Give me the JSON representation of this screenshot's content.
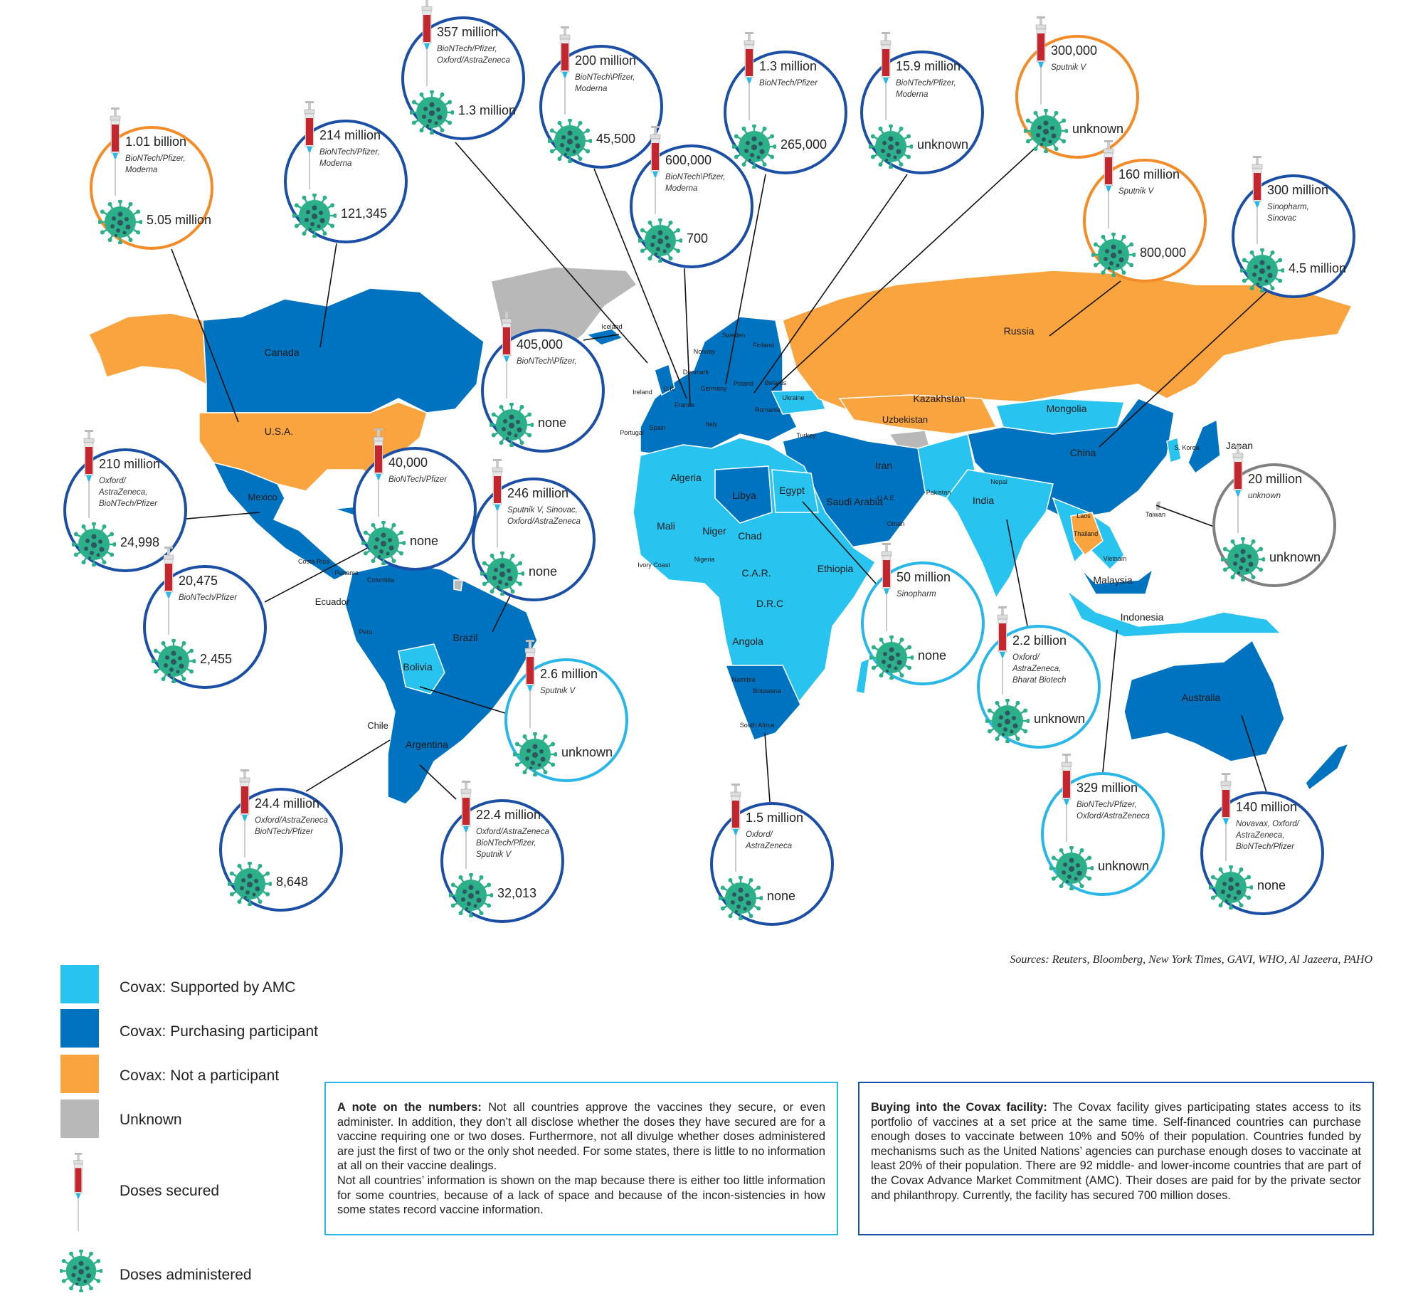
{
  "colors": {
    "supported_by_amc": "#29c3f0",
    "purchasing_participant": "#0073c0",
    "not_a_participant": "#f9a43e",
    "unknown": "#b8b8b8",
    "circle_purchasing": "#1b4fa6",
    "circle_not_participant": "#f28c28",
    "circle_amc": "#29b6e8",
    "circle_unknown": "#808080",
    "virus": "#2bb08a",
    "syringe_liquid": "#c4262e"
  },
  "country_labels": [
    "Canada",
    "U.S.A.",
    "Mexico",
    "Costa Rica",
    "Panama",
    "Colombia",
    "Ecuador",
    "Peru",
    "Brazil",
    "Bolivia",
    "Chile",
    "Argentina",
    "Iceland",
    "Norway",
    "Sweden",
    "Finland",
    "Denmark",
    "Ireland",
    "U.K.",
    "France",
    "Germany",
    "Poland",
    "Belarus",
    "Ukraine",
    "Romania",
    "Spain",
    "Portugal",
    "Italy",
    "Turkey",
    "Russia",
    "Kazakhstan",
    "Uzbekistan",
    "Mongolia",
    "China",
    "Japan",
    "S. Korea",
    "Taiwan",
    "Iran",
    "Saudi Arabia",
    "U.A.E.",
    "Oman",
    "Pakistan",
    "Nepal",
    "India",
    "Laos",
    "Thailand",
    "Vietnam",
    "Malaysia",
    "Indonesia",
    "Australia",
    "Algeria",
    "Libya",
    "Egypt",
    "Mali",
    "Niger",
    "Chad",
    "Nigeria",
    "Ivory Coast",
    "C.A.R.",
    "Ethiopia",
    "D.R.C",
    "Angola",
    "Namibia",
    "Botswana",
    "South Africa"
  ],
  "callouts": [
    {
      "status": "not_a_participant",
      "secured": "1.01 billion",
      "vaccines": "BioNTech/Pfizer,\nModerna",
      "administered": "5.05 million"
    },
    {
      "status": "purchasing",
      "secured": "214 million",
      "vaccines": "BioNTech/Pfizer,\nModerna",
      "administered": "121,345"
    },
    {
      "status": "purchasing",
      "secured": "357 million",
      "vaccines": "BioNTech/Pfizer,\nOxford/AstraZeneca",
      "administered": "1.3 million"
    },
    {
      "status": "purchasing",
      "secured": "200 million",
      "vaccines": "BioNTech\\Pfizer,\nModerna",
      "administered": "45,500"
    },
    {
      "status": "purchasing",
      "secured": "600,000",
      "vaccines": "BioNTech\\Pfizer,\nModerna",
      "administered": "700"
    },
    {
      "status": "purchasing",
      "secured": "1.3 million",
      "vaccines": "BioNTech/Pfizer",
      "administered": "265,000"
    },
    {
      "status": "purchasing",
      "secured": "15.9 million",
      "vaccines": "BioNTech/Pfizer,\nModerna",
      "administered": "unknown"
    },
    {
      "status": "not_a_participant",
      "secured": "300,000",
      "vaccines": "Sputnik V",
      "administered": "unknown"
    },
    {
      "status": "not_a_participant",
      "secured": "160 million",
      "vaccines": "Sputnik V",
      "administered": "800,000"
    },
    {
      "status": "purchasing",
      "secured": "300 million",
      "vaccines": "Sinopharm,\nSinovac",
      "administered": "4.5 million"
    },
    {
      "status": "purchasing",
      "secured": "405,000",
      "vaccines": "BioNTech\\Pfizer,",
      "administered": "none"
    },
    {
      "status": "purchasing",
      "secured": "40,000",
      "vaccines": "BioNTech/Pfizer",
      "administered": "none"
    },
    {
      "status": "purchasing",
      "secured": "210 million",
      "vaccines": "Oxford/\nAstraZeneca,\nBioNTech/Pfizer",
      "administered": "24,998"
    },
    {
      "status": "purchasing",
      "secured": "20,475",
      "vaccines": "BioNTech/Pfizer",
      "administered": "2,455"
    },
    {
      "status": "purchasing",
      "secured": "246 million",
      "vaccines": "Sputnik V, Sinovac,\nOxford/AstraZeneca",
      "administered": "none"
    },
    {
      "status": "unknown",
      "secured": "20 million",
      "vaccines": "unknown",
      "administered": "unknown"
    },
    {
      "status": "amc",
      "secured": "50 million",
      "vaccines": "Sinopharm",
      "administered": "none"
    },
    {
      "status": "amc",
      "secured": "2.2 billion",
      "vaccines": "Oxford/\nAstraZeneca,\nBharat Biotech",
      "administered": "unknown"
    },
    {
      "status": "amc",
      "secured": "2.6 million",
      "vaccines": "Sputnik V",
      "administered": "unknown"
    },
    {
      "status": "purchasing",
      "secured": "24.4 million",
      "vaccines": "Oxford/AstraZeneca\nBioNTech/Pfizer",
      "administered": "8,648"
    },
    {
      "status": "purchasing",
      "secured": "22.4 million",
      "vaccines": "Oxford/AstraZeneca\nBioNTech/Pfizer,\nSputnik V",
      "administered": "32,013"
    },
    {
      "status": "purchasing",
      "secured": "1.5 million",
      "vaccines": "Oxford/\nAstraZeneca",
      "administered": "none"
    },
    {
      "status": "amc",
      "secured": "329 million",
      "vaccines": "BioNTech/Pfizer,\nOxford/AstraZeneca",
      "administered": "unknown"
    },
    {
      "status": "purchasing",
      "secured": "140 million",
      "vaccines": "Novavax, Oxford/\nAstraZeneca,\nBioNTech/Pfizer",
      "administered": "none"
    }
  ],
  "sources": "Sources: Reuters, Bloomberg, New York Times, GAVI, WHO, Al Jazeera, PAHO",
  "legend": {
    "supported": "Covax: Supported by AMC",
    "purchasing": "Covax: Purchasing participant",
    "not_participant": "Covax: Not a participant",
    "unknown": "Unknown",
    "secured": "Doses secured",
    "administered": "Doses administered"
  },
  "notes": {
    "numbers_title": "A note on the numbers:",
    "numbers_body": " Not all countries approve the vaccines they secure, or even administer. In addition, they don’t all disclose whether the doses they have secured are for a vaccine requiring one or two doses. Furthermore, not all divulge whether doses administered are just the first of two or the only shot needed. For some states, there is little to no information at all on their vaccine dealings.",
    "numbers_body2": "Not all countries’ information is shown on the map because there is either too little information for some countries, because of a lack of space and because of the incon-sistencies in how some states record vaccine information.",
    "covax_title": "Buying into the Covax facility:",
    "covax_body": " The Covax facility gives participating states access to its portfolio of vaccines at a set price at the same time. Self-financed countries can purchase enough doses to vaccinate between 10% and 50% of their population. Countries funded by mechanisms such as the United Nations’ agencies can purchase enough doses to vaccinate at least 20% of their population. There are 92 middle- and lower-income countries that are part of the Covax Advance Market Commitment (AMC). Their doses are paid for by the private sector and philanthropy. Currently, the facility has secured 700 million doses."
  }
}
